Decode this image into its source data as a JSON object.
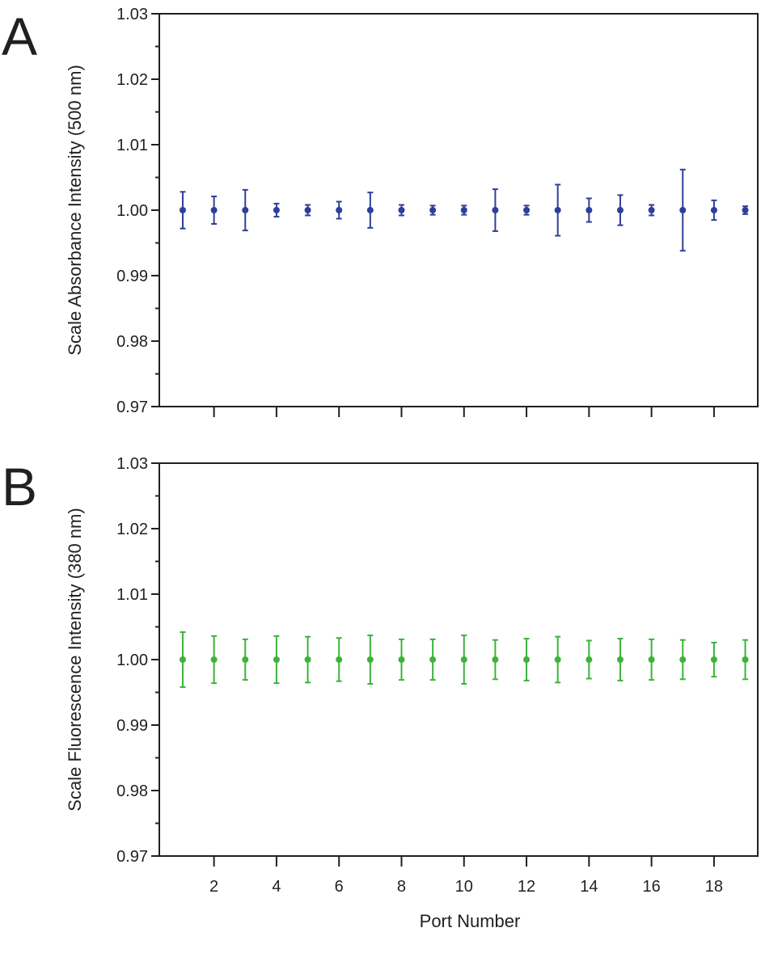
{
  "chart_data": [
    {
      "panel_label": "A",
      "type": "scatter",
      "error_bars": true,
      "ylabel": "Scale Absorbance Intensity (500 nm)",
      "xlabel": "",
      "xlim": [
        0.25,
        19.4
      ],
      "ylim": [
        0.97,
        1.03
      ],
      "xticks": [
        2,
        4,
        6,
        8,
        10,
        12,
        14,
        16,
        18
      ],
      "show_x_tick_labels": false,
      "yticks": [
        0.97,
        0.98,
        0.99,
        1.0,
        1.01,
        1.02,
        1.03
      ],
      "ytick_labels": [
        "0.97",
        "0.98",
        "0.99",
        "1.00",
        "1.01",
        "1.02",
        "1.03"
      ],
      "grid": false,
      "color": "#2e3f99",
      "x": [
        1,
        2,
        3,
        4,
        5,
        6,
        7,
        8,
        9,
        10,
        11,
        12,
        13,
        14,
        15,
        16,
        17,
        18,
        19
      ],
      "y": [
        1.0,
        1.0,
        1.0,
        1.0,
        1.0,
        1.0,
        1.0,
        1.0,
        1.0,
        1.0,
        1.0,
        1.0,
        1.0,
        1.0,
        1.0,
        1.0,
        1.0,
        1.0,
        1.0
      ],
      "yerr": [
        0.0028,
        0.0021,
        0.0031,
        0.001,
        0.0008,
        0.0013,
        0.0027,
        0.0008,
        0.0007,
        0.0007,
        0.0032,
        0.0007,
        0.0039,
        0.0018,
        0.0023,
        0.0008,
        0.0062,
        0.0015,
        0.0006
      ]
    },
    {
      "panel_label": "B",
      "type": "scatter",
      "error_bars": true,
      "ylabel": "Scale Fluorescence Intensity (380 nm)",
      "xlabel": "Port Number",
      "xlim": [
        0.25,
        19.4
      ],
      "ylim": [
        0.97,
        1.03
      ],
      "xticks": [
        2,
        4,
        6,
        8,
        10,
        12,
        14,
        16,
        18
      ],
      "xtick_labels": [
        "2",
        "4",
        "6",
        "8",
        "10",
        "12",
        "14",
        "16",
        "18"
      ],
      "show_x_tick_labels": true,
      "yticks": [
        0.97,
        0.98,
        0.99,
        1.0,
        1.01,
        1.02,
        1.03
      ],
      "ytick_labels": [
        "0.97",
        "0.98",
        "0.99",
        "1.00",
        "1.01",
        "1.02",
        "1.03"
      ],
      "grid": false,
      "color": "#3cb33a",
      "x": [
        1,
        2,
        3,
        4,
        5,
        6,
        7,
        8,
        9,
        10,
        11,
        12,
        13,
        14,
        15,
        16,
        17,
        18,
        19
      ],
      "y": [
        1.0,
        1.0,
        1.0,
        1.0,
        1.0,
        1.0,
        1.0,
        1.0,
        1.0,
        1.0,
        1.0,
        1.0,
        1.0,
        1.0,
        1.0,
        1.0,
        1.0,
        1.0,
        1.0
      ],
      "yerr": [
        0.0042,
        0.0036,
        0.0031,
        0.0036,
        0.0035,
        0.0033,
        0.0037,
        0.0031,
        0.0031,
        0.0037,
        0.003,
        0.0032,
        0.0035,
        0.0029,
        0.0032,
        0.0031,
        0.003,
        0.0026,
        0.003
      ]
    }
  ]
}
